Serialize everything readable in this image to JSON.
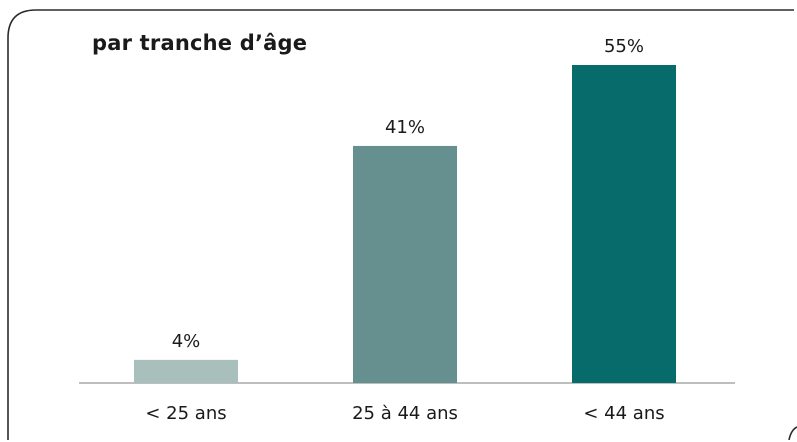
{
  "chart_data": {
    "type": "bar",
    "title": "par tranche d’âge",
    "categories": [
      "< 25 ans",
      "25 à 44 ans",
      "< 44 ans"
    ],
    "values": [
      4,
      41,
      55
    ],
    "value_labels": [
      "4%",
      "41%",
      "55%"
    ],
    "unit": "%",
    "ylim": [
      0,
      55
    ],
    "grid": false,
    "legend": "none",
    "colors": [
      "#a8bfbc",
      "#65908f",
      "#066b6a"
    ],
    "axis_color": "#a9a9a9",
    "frame_color": "#2b2b2b",
    "text_color": "#1a1a1a"
  }
}
